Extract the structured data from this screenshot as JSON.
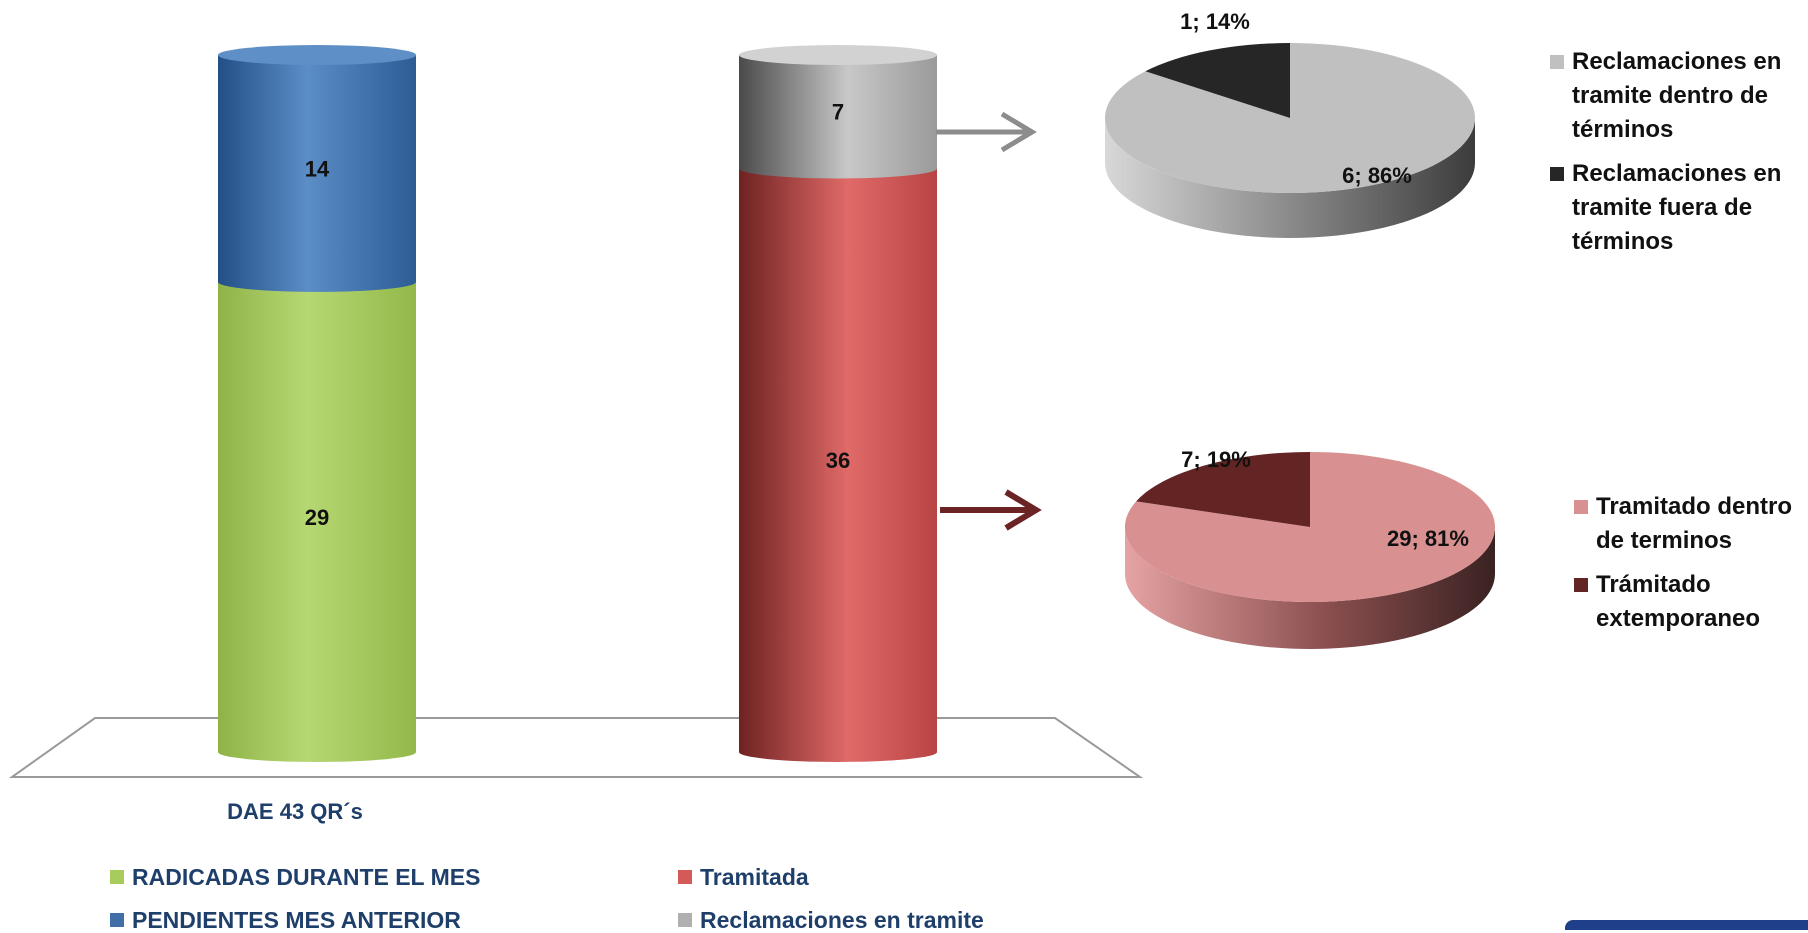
{
  "chart_data": [
    {
      "type": "bar",
      "category": "DAE 43 QR´s",
      "stacks": [
        {
          "segments": [
            {
              "name": "RADICADAS DURANTE EL MES",
              "value": 29,
              "color": "#a8cc5c"
            },
            {
              "name": "PENDIENTES MES ANTERIOR",
              "value": 14,
              "color": "#3f6fa6"
            }
          ]
        },
        {
          "segments": [
            {
              "name": "Tramitada",
              "value": 36,
              "color": "#d45a58"
            },
            {
              "name": "Reclamaciones en tramite",
              "value": 7,
              "color": "#b0b0b0"
            }
          ]
        }
      ],
      "ylim": [
        0,
        43
      ],
      "legend": [
        {
          "label": "RADICADAS DURANTE EL MES",
          "color": "#a8cc5c"
        },
        {
          "label": "Tramitada",
          "color": "#d45a58"
        },
        {
          "label": "PENDIENTES MES ANTERIOR",
          "color": "#3f6fa6"
        },
        {
          "label": "Reclamaciones en tramite",
          "color": "#b0b0b0"
        }
      ]
    },
    {
      "type": "pie",
      "slices": [
        {
          "name": "Reclamaciones en tramite dentro de términos",
          "value": 6,
          "percent": 86,
          "label": "6; 86%",
          "color": "#c0c0c0"
        },
        {
          "name": "Reclamaciones en tramite fuera de términos",
          "value": 1,
          "percent": 14,
          "label": "1; 14%",
          "color": "#262626"
        }
      ],
      "legend": [
        {
          "label": "Reclamaciones en tramite dentro de términos",
          "color": "#c0c0c0"
        },
        {
          "label": "Reclamaciones en tramite fuera de términos",
          "color": "#262626"
        }
      ]
    },
    {
      "type": "pie",
      "slices": [
        {
          "name": "Tramitado dentro de terminos",
          "value": 29,
          "percent": 81,
          "label": "29; 81%",
          "color": "#d99090"
        },
        {
          "name": "Trámitado extemporaneo",
          "value": 7,
          "percent": 19,
          "label": "7; 19%",
          "color": "#632424"
        }
      ],
      "legend": [
        {
          "label": "Tramitado dentro de terminos",
          "color": "#d99090"
        },
        {
          "label": "Trámitado extemporaneo",
          "color": "#632424"
        }
      ]
    }
  ]
}
